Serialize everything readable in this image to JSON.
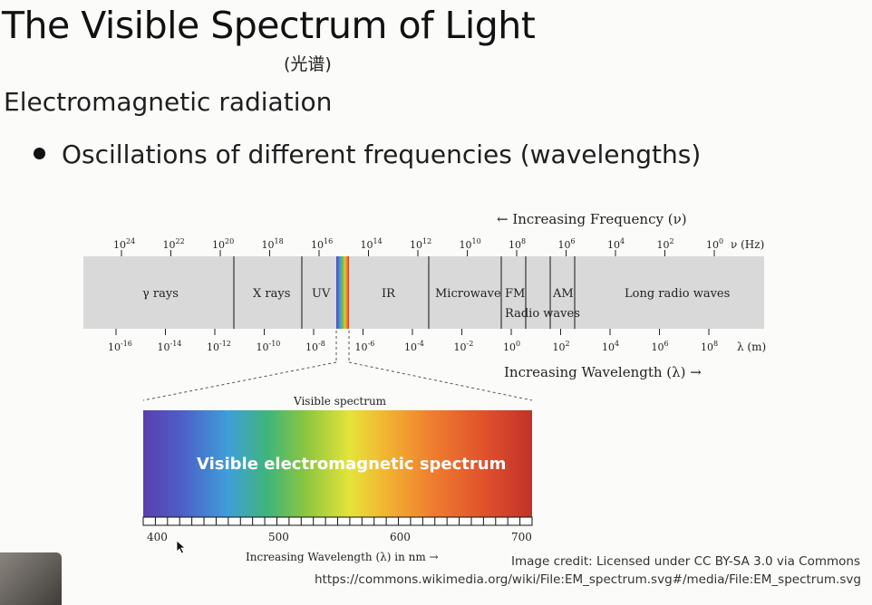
{
  "slide": {
    "title": "The Visible Spectrum of Light",
    "subtitle": "(光谱)",
    "heading": "Electromagnetic radiation",
    "bullet": "Oscillations of different frequencies (wavelengths)",
    "credit": "Image credit: Licensed under CC BY-SA 3.0 via Commons",
    "credit_url": "https://commons.wikimedia.org/wiki/File:EM_spectrum.svg#/media/File:EM_spectrum.svg"
  },
  "diagram": {
    "freq_label": "← Increasing Frequency (ν)",
    "freq_unit": "ν (Hz)",
    "freq_ticks": [
      {
        "base": "10",
        "exp": "24"
      },
      {
        "base": "10",
        "exp": "22"
      },
      {
        "base": "10",
        "exp": "20"
      },
      {
        "base": "10",
        "exp": "18"
      },
      {
        "base": "10",
        "exp": "16"
      },
      {
        "base": "10",
        "exp": "14"
      },
      {
        "base": "10",
        "exp": "12"
      },
      {
        "base": "10",
        "exp": "10"
      },
      {
        "base": "10",
        "exp": "8"
      },
      {
        "base": "10",
        "exp": "6"
      },
      {
        "base": "10",
        "exp": "4"
      },
      {
        "base": "10",
        "exp": "2"
      },
      {
        "base": "10",
        "exp": "0"
      }
    ],
    "wave_ticks": [
      {
        "base": "10",
        "exp": "-16"
      },
      {
        "base": "10",
        "exp": "-14"
      },
      {
        "base": "10",
        "exp": "-12"
      },
      {
        "base": "10",
        "exp": "-10"
      },
      {
        "base": "10",
        "exp": "-8"
      },
      {
        "base": "10",
        "exp": "-6"
      },
      {
        "base": "10",
        "exp": "-4"
      },
      {
        "base": "10",
        "exp": "-2"
      },
      {
        "base": "10",
        "exp": "0"
      },
      {
        "base": "10",
        "exp": "2"
      },
      {
        "base": "10",
        "exp": "4"
      },
      {
        "base": "10",
        "exp": "6"
      },
      {
        "base": "10",
        "exp": "8"
      }
    ],
    "wave_unit": "λ (m)",
    "wave_label": "Increasing Wavelength (λ) →",
    "regions": {
      "gamma": "γ rays",
      "xray": "X rays",
      "uv": "UV",
      "ir": "IR",
      "microwave": "Microwave",
      "fm": "FM",
      "am": "AM",
      "radio": "Radio waves",
      "long_radio": "Long radio waves"
    },
    "visible_title": "Visible spectrum",
    "visible_label": "Visible electromagnetic spectrum",
    "visible_ticks": [
      "400",
      "500",
      "600",
      "700"
    ],
    "visible_axis_label": "Increasing Wavelength (λ) in nm →"
  },
  "icons": {
    "cursor": "arrow-cursor-icon"
  }
}
